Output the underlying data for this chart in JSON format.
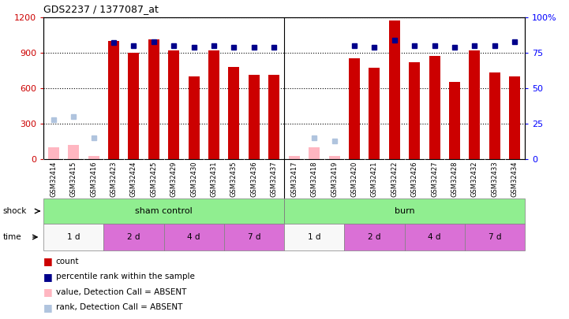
{
  "title": "GDS2237 / 1377087_at",
  "samples": [
    "GSM32414",
    "GSM32415",
    "GSM32416",
    "GSM32423",
    "GSM32424",
    "GSM32425",
    "GSM32429",
    "GSM32430",
    "GSM32431",
    "GSM32435",
    "GSM32436",
    "GSM32437",
    "GSM32417",
    "GSM32418",
    "GSM32419",
    "GSM32420",
    "GSM32421",
    "GSM32422",
    "GSM32426",
    "GSM32427",
    "GSM32428",
    "GSM32432",
    "GSM32433",
    "GSM32434"
  ],
  "count": [
    null,
    null,
    null,
    1000,
    900,
    1010,
    920,
    700,
    920,
    780,
    710,
    710,
    null,
    null,
    null,
    850,
    770,
    1170,
    820,
    870,
    650,
    920,
    730,
    700
  ],
  "count_absent": [
    100,
    120,
    30,
    null,
    null,
    null,
    null,
    null,
    null,
    null,
    null,
    null,
    30,
    100,
    30,
    null,
    null,
    null,
    null,
    null,
    null,
    null,
    null,
    null
  ],
  "percentile": [
    null,
    null,
    null,
    82,
    80,
    83,
    80,
    79,
    80,
    79,
    79,
    79,
    null,
    null,
    null,
    80,
    79,
    84,
    80,
    80,
    79,
    80,
    80,
    83
  ],
  "percentile_absent": [
    28,
    30,
    15,
    null,
    null,
    null,
    null,
    null,
    null,
    null,
    null,
    null,
    null,
    15,
    13,
    null,
    null,
    null,
    null,
    null,
    null,
    null,
    null,
    null
  ],
  "ylim_left": [
    0,
    1200
  ],
  "ylim_right": [
    0,
    100
  ],
  "yticks_left": [
    0,
    300,
    600,
    900,
    1200
  ],
  "yticks_right": [
    0,
    25,
    50,
    75,
    100
  ],
  "bar_color": "#CC0000",
  "bar_absent_color": "#FFB6C1",
  "dot_color": "#00008B",
  "dot_absent_color": "#B0C4DE",
  "bg_color": "#ffffff",
  "sham_color": "#90EE90",
  "burn_color": "#90EE90",
  "time_white_color": "#f8f8f8",
  "time_purple_color": "#DA70D6",
  "xlabel_bg": "#d8d8d8",
  "shock_groups": [
    {
      "label": "sham control",
      "start": 0,
      "end": 12
    },
    {
      "label": "burn",
      "start": 12,
      "end": 24
    }
  ],
  "time_groups": [
    {
      "label": "1 d",
      "start": 0,
      "end": 3,
      "type": "white"
    },
    {
      "label": "2 d",
      "start": 3,
      "end": 6,
      "type": "purple"
    },
    {
      "label": "4 d",
      "start": 6,
      "end": 9,
      "type": "purple"
    },
    {
      "label": "7 d",
      "start": 9,
      "end": 12,
      "type": "purple"
    },
    {
      "label": "1 d",
      "start": 12,
      "end": 15,
      "type": "white"
    },
    {
      "label": "2 d",
      "start": 15,
      "end": 18,
      "type": "purple"
    },
    {
      "label": "4 d",
      "start": 18,
      "end": 21,
      "type": "purple"
    },
    {
      "label": "7 d",
      "start": 21,
      "end": 24,
      "type": "purple"
    }
  ]
}
